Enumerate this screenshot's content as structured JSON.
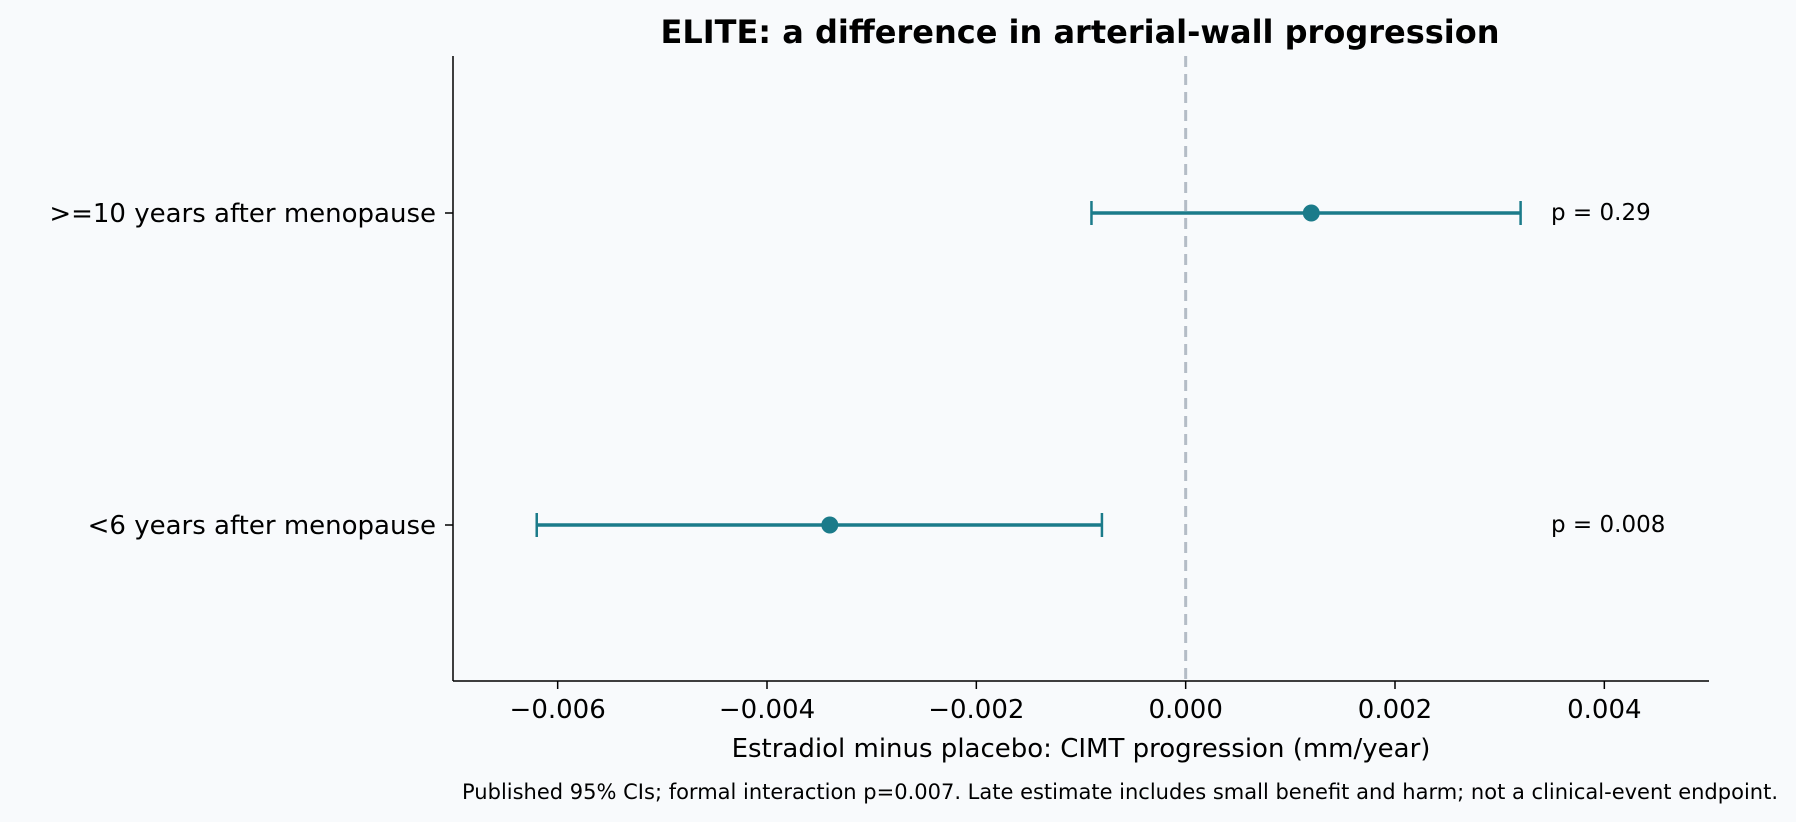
{
  "chart_data": {
    "type": "forest",
    "title": "ELITE: a difference in arterial-wall progression",
    "xlabel": "Estradiol minus placebo: CIMT progression (mm/year)",
    "xlim": [
      -0.007,
      0.005
    ],
    "xticks": [
      "−0.006",
      "−0.004",
      "−0.002",
      "0.000",
      "0.002",
      "0.004"
    ],
    "xtick_values": [
      -0.006,
      -0.004,
      -0.002,
      0.0,
      0.002,
      0.004
    ],
    "reference_line": 0.0,
    "grid": false,
    "marker_color": "#1b7b8a",
    "reference_color": "#b4bcc6",
    "rows": [
      {
        "label": ">=10 years after menopause",
        "estimate": 0.0012,
        "ci_low": -0.0009,
        "ci_high": 0.0032,
        "annotation": "p = 0.29"
      },
      {
        "label": "<6 years after menopause",
        "estimate": -0.0034,
        "ci_low": -0.0062,
        "ci_high": -0.0008,
        "annotation": "p = 0.008"
      }
    ],
    "footnote": "Published 95% CIs; formal interaction p=0.007. Late estimate includes small benefit and harm; not a clinical-event endpoint."
  }
}
